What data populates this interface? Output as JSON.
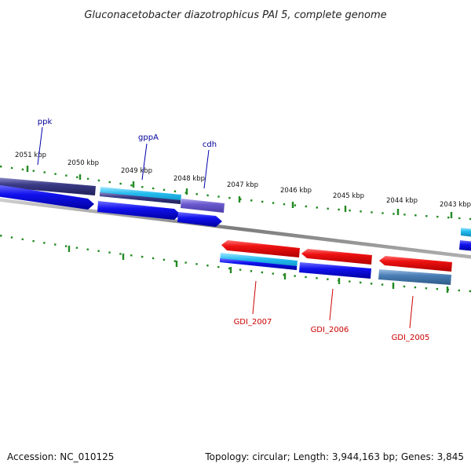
{
  "title": "Gluconacetobacter diazotrophicus PAI 5, complete genome",
  "accession_label": "Accession: NC_010125",
  "summary_label": "Topology: circular; Length: 3,944,163 bp; Genes: 3,845",
  "colors": {
    "tick": "#228b22",
    "backbone": "#8c8c8c",
    "label_top": "#000099",
    "label_bottom": "#cc0000",
    "red": "#ee1111",
    "cyan": "#22bbee",
    "blue": "#1111ee",
    "navy": "#3a3a86",
    "lavender": "#6a5acd",
    "steel": "#4a7eb5"
  },
  "scale_labels": [
    "2051 kbp",
    "2050 kbp",
    "2049 kbp",
    "2048 kbp",
    "2047 kbp",
    "2046 kbp",
    "2045 kbp",
    "2044 kbp",
    "2043 kbp"
  ],
  "gene_labels_top": [
    {
      "text": "ppk"
    },
    {
      "text": "gppA"
    },
    {
      "text": "cdh"
    }
  ],
  "gene_labels_bottom": [
    {
      "text": "GDI_2007"
    },
    {
      "text": "GDI_2006"
    },
    {
      "text": "GDI_2005"
    }
  ]
}
